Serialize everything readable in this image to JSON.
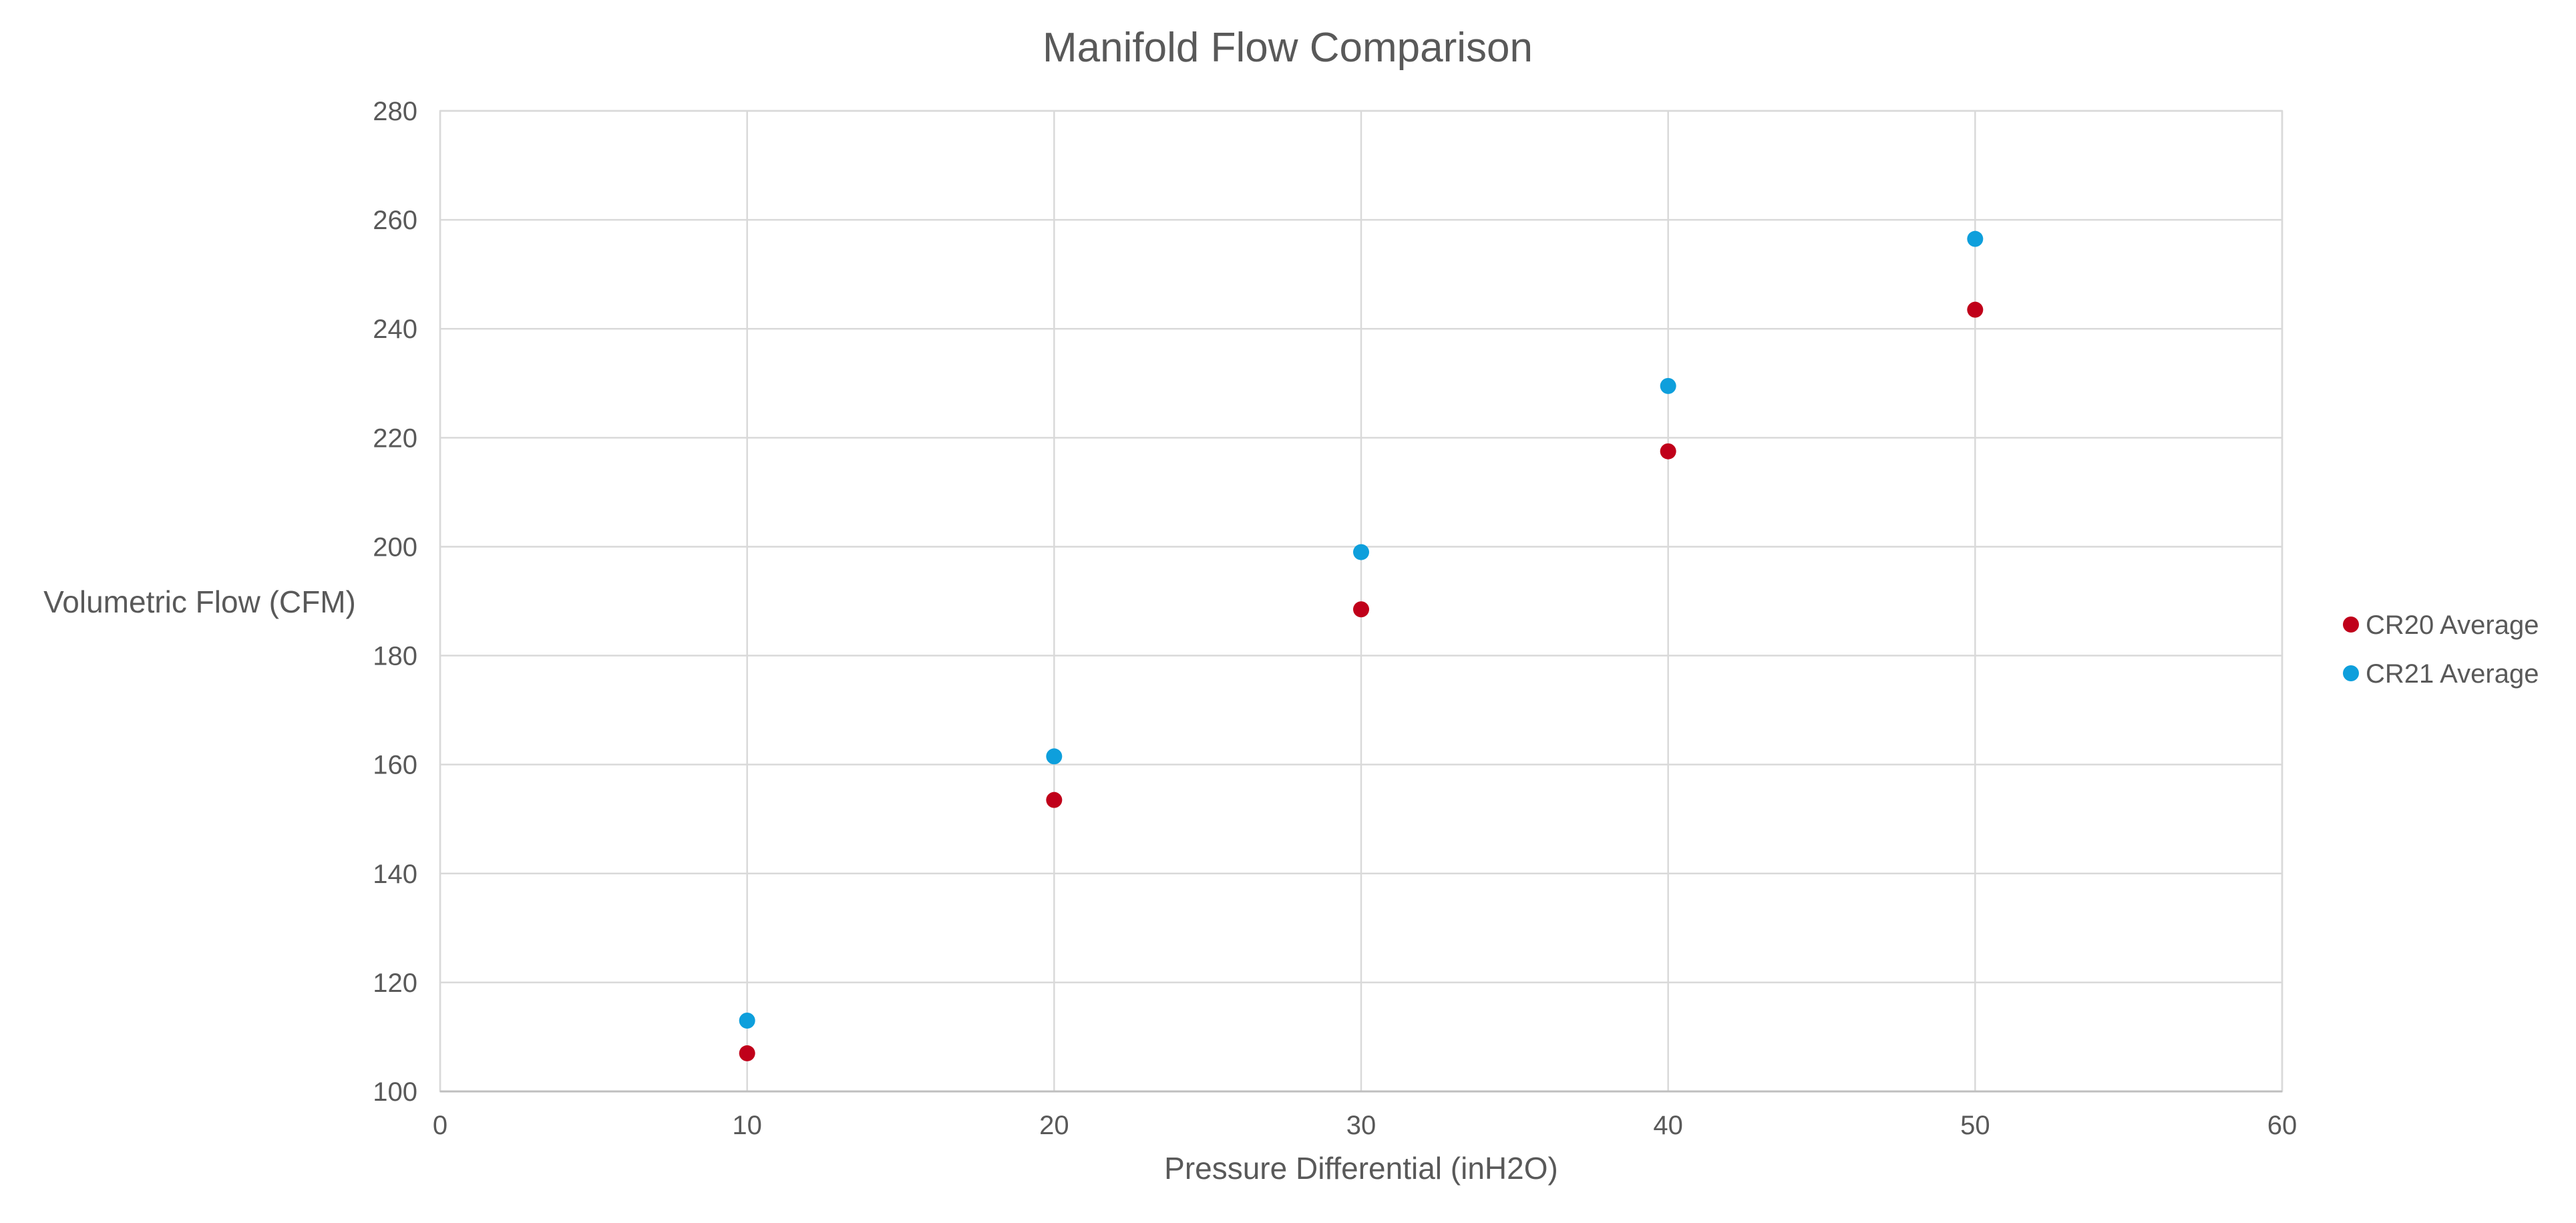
{
  "chart_data": {
    "type": "scatter",
    "title": "Manifold Flow Comparison",
    "xlabel": "Pressure Differential (inH2O)",
    "ylabel": "Volumetric Flow (CFM)",
    "xlim": [
      0,
      60
    ],
    "ylim": [
      100,
      280
    ],
    "xticks": [
      0,
      10,
      20,
      30,
      40,
      50,
      60
    ],
    "yticks": [
      100,
      120,
      140,
      160,
      180,
      200,
      220,
      240,
      260,
      280
    ],
    "grid": true,
    "legend_position": "right",
    "series": [
      {
        "name": "CR20 Average",
        "color": "#c0001a",
        "x": [
          10,
          20,
          30,
          40,
          50
        ],
        "y": [
          107,
          153.5,
          188.5,
          217.5,
          243.5
        ]
      },
      {
        "name": "CR21 Average",
        "color": "#0e9fdc",
        "x": [
          10,
          20,
          30,
          40,
          50
        ],
        "y": [
          113,
          161.5,
          199,
          229.5,
          256.5
        ]
      }
    ]
  }
}
